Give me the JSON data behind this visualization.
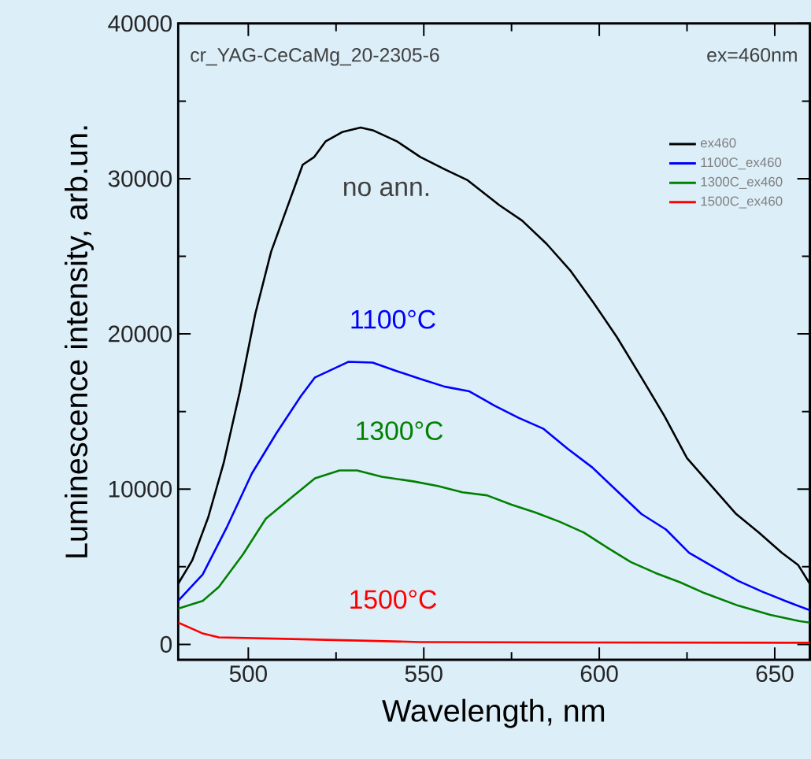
{
  "chart_data": {
    "type": "line",
    "xlabel": "Wavelength, nm",
    "ylabel": "Luminescence intensity, arb.un.",
    "xlim": [
      480,
      660
    ],
    "ylim": [
      -1000,
      40000
    ],
    "xticks": [
      500,
      550,
      600,
      650
    ],
    "yticks": [
      0,
      10000,
      20000,
      30000,
      40000
    ],
    "grid": false,
    "legend": "top right",
    "marker": "none",
    "line_style": "solid",
    "annotations": [
      "cr_YAG-CeCaMg_20-2305-6",
      "ex=460nm",
      "no ann.",
      "1100°C",
      "1300°C",
      "1500°C"
    ],
    "series": [
      {
        "name": "ex460",
        "color": "#000000",
        "x": [
          480,
          484,
          488.6,
          493,
          497.5,
          502,
          506.5,
          511,
          515.5,
          518.8,
          522,
          526.7,
          532,
          535.7,
          542.4,
          549,
          556,
          562.5,
          571.5,
          578,
          585,
          591.7,
          598.4,
          605,
          612,
          618.6,
          625,
          632,
          639,
          645.5,
          652,
          656.7,
          660
        ],
        "values": [
          3900,
          5400,
          8200,
          11700,
          16200,
          21300,
          25300,
          28100,
          30900,
          31400,
          32400,
          33000,
          33300,
          33100,
          32400,
          31400,
          30600,
          29900,
          28300,
          27300,
          25800,
          24100,
          22000,
          19800,
          17200,
          14700,
          12000,
          10200,
          8400,
          7200,
          5900,
          5100,
          3900
        ]
      },
      {
        "name": "1100C_ex460",
        "color": "#0000ff",
        "x": [
          480,
          487,
          494,
          501,
          508,
          515,
          519,
          528.5,
          535.4,
          542.4,
          549,
          556,
          563,
          570,
          577,
          584,
          591,
          598,
          605,
          612,
          619,
          625.6,
          632.5,
          639.5,
          646.4,
          653,
          660
        ],
        "values": [
          2800,
          4500,
          7600,
          11000,
          13600,
          16000,
          17200,
          18200,
          18150,
          17600,
          17100,
          16600,
          16300,
          15400,
          14600,
          13900,
          12600,
          11400,
          9900,
          8400,
          7400,
          5900,
          5000,
          4100,
          3400,
          2800,
          2200
        ]
      },
      {
        "name": "1300C_ex460",
        "color": "#008000",
        "x": [
          480,
          487,
          491.6,
          498.5,
          505,
          512,
          519,
          526,
          531,
          538,
          547,
          554,
          561,
          568,
          575,
          581.7,
          588.7,
          595.6,
          602.5,
          609,
          616,
          623,
          630,
          639.5,
          648.8,
          656.9,
          660
        ],
        "values": [
          2300,
          2800,
          3700,
          5800,
          8100,
          9400,
          10700,
          11200,
          11200,
          10800,
          10500,
          10200,
          9800,
          9600,
          9000,
          8500,
          7900,
          7200,
          6200,
          5300,
          4600,
          4000,
          3300,
          2500,
          1900,
          1500,
          1400
        ]
      },
      {
        "name": "1500C_ex460",
        "color": "#ff0000",
        "x": [
          480,
          487,
          491.6,
          515,
          549,
          595.6,
          660
        ],
        "values": [
          1400,
          700,
          450,
          330,
          150,
          120,
          100
        ]
      }
    ]
  }
}
